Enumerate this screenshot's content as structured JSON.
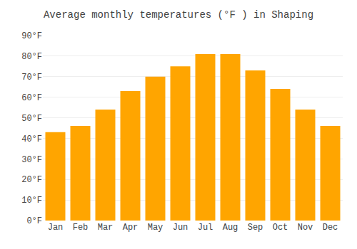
{
  "chart_data": {
    "type": "bar",
    "title": "Average monthly temperatures (°F ) in Shaping",
    "categories": [
      "Jan",
      "Feb",
      "Mar",
      "Apr",
      "May",
      "Jun",
      "Jul",
      "Aug",
      "Sep",
      "Oct",
      "Nov",
      "Dec"
    ],
    "values": [
      43,
      46,
      54,
      63,
      70,
      75,
      81,
      81,
      73,
      64,
      54,
      46
    ],
    "color": "#FFA500",
    "ylim": [
      0,
      90
    ],
    "yticks": [
      {
        "value": 0,
        "label": "0°F"
      },
      {
        "value": 10,
        "label": "10°F"
      },
      {
        "value": 20,
        "label": "20°F"
      },
      {
        "value": 30,
        "label": "30°F"
      },
      {
        "value": 40,
        "label": "40°F"
      },
      {
        "value": 50,
        "label": "50°F"
      },
      {
        "value": 60,
        "label": "60°F"
      },
      {
        "value": 70,
        "label": "70°F"
      },
      {
        "value": 80,
        "label": "80°F"
      },
      {
        "value": 90,
        "label": "90°F"
      }
    ],
    "grid": true
  }
}
